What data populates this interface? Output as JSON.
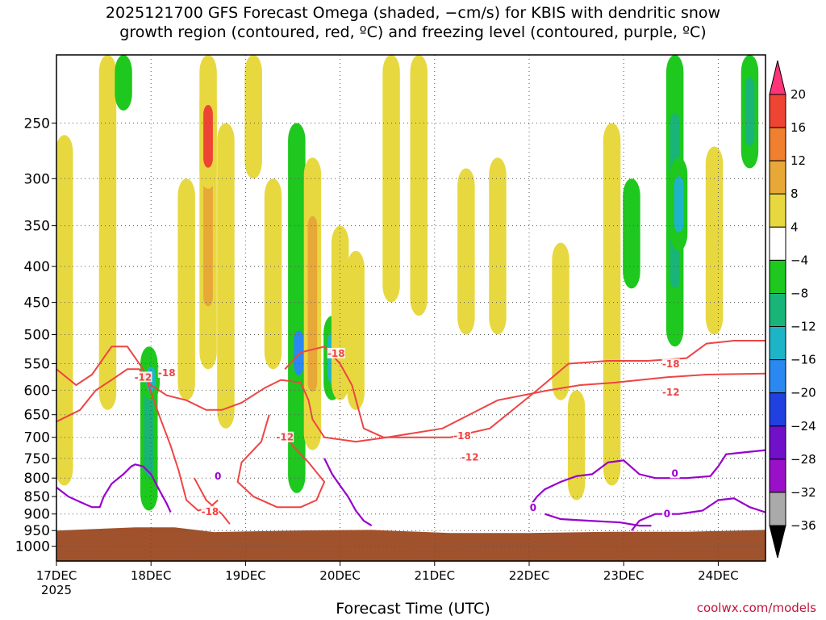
{
  "title_line1": "2025121700 GFS Forecast Omega (shaded, −cm/s) for KBIS with dendritic snow",
  "title_line2": "growth region (contoured, red, ºC) and freezing level (contoured, purple, ºC)",
  "credit": "coolwx.com/models",
  "chart_data": {
    "type": "heatmap",
    "title": "2025121700 GFS Forecast Omega (shaded, −cm/s) for KBIS with dendritic snow growth region (contoured, red, ºC) and freezing level (contoured, purple, ºC)",
    "xlabel": "Forecast Time (UTC)",
    "ylabel": "",
    "x_ticks": [
      "17DEC",
      "18DEC",
      "19DEC",
      "20DEC",
      "21DEC",
      "22DEC",
      "23DEC",
      "24DEC"
    ],
    "x_tick_year": "2025",
    "xlim_hours": [
      0,
      180
    ],
    "y_ticks": [
      250,
      300,
      350,
      400,
      450,
      500,
      550,
      600,
      650,
      700,
      750,
      800,
      850,
      900,
      950,
      1000
    ],
    "ylim_hpa": [
      200,
      1050
    ],
    "colorbar": {
      "labels": [
        "20",
        "16",
        "12",
        "8",
        "4",
        "−4",
        "−8",
        "−12",
        "−16",
        "−20",
        "−24",
        "−28",
        "−32",
        "−36"
      ],
      "colors": [
        "#ff3377",
        "#ee4433",
        "#f08030",
        "#e8a838",
        "#e8d840",
        "#ffffff",
        "#1ec81e",
        "#19b478",
        "#1eb4c8",
        "#2a88f0",
        "#2040e0",
        "#7010c8",
        "#9a10c8",
        "#aaaaaa",
        "#000000"
      ]
    },
    "omega_regions": [
      {
        "center_h": 2,
        "p_top": 260,
        "p_bot": 820,
        "value": 6
      },
      {
        "center_h": 13,
        "p_top": 200,
        "p_bot": 640,
        "value": 6
      },
      {
        "center_h": 17,
        "p_top": 200,
        "p_bot": 240,
        "value": -6
      },
      {
        "center_h": 23.5,
        "p_top": 520,
        "p_bot": 890,
        "value": -8
      },
      {
        "center_h": 24,
        "p_top": 540,
        "p_bot": 620,
        "value": -14
      },
      {
        "center_h": 33,
        "p_top": 300,
        "p_bot": 620,
        "value": 6
      },
      {
        "center_h": 38.5,
        "p_top": 200,
        "p_bot": 560,
        "value": 10
      },
      {
        "center_h": 38.5,
        "p_top": 220,
        "p_bot": 310,
        "value": 18
      },
      {
        "center_h": 43,
        "p_top": 250,
        "p_bot": 680,
        "value": 6
      },
      {
        "center_h": 50,
        "p_top": 200,
        "p_bot": 300,
        "value": 5
      },
      {
        "center_h": 55,
        "p_top": 300,
        "p_bot": 560,
        "value": 6
      },
      {
        "center_h": 61,
        "p_top": 250,
        "p_bot": 840,
        "value": -6
      },
      {
        "center_h": 61.5,
        "p_top": 470,
        "p_bot": 600,
        "value": -16
      },
      {
        "center_h": 65,
        "p_top": 280,
        "p_bot": 730,
        "value": 8
      },
      {
        "center_h": 70,
        "p_top": 470,
        "p_bot": 620,
        "value": -14
      },
      {
        "center_h": 72,
        "p_top": 350,
        "p_bot": 620,
        "value": 6
      },
      {
        "center_h": 76,
        "p_top": 380,
        "p_bot": 640,
        "value": 6
      },
      {
        "center_h": 85,
        "p_top": 200,
        "p_bot": 450,
        "value": 5
      },
      {
        "center_h": 92,
        "p_top": 200,
        "p_bot": 470,
        "value": 5
      },
      {
        "center_h": 104,
        "p_top": 290,
        "p_bot": 500,
        "value": 5
      },
      {
        "center_h": 112,
        "p_top": 280,
        "p_bot": 500,
        "value": 5
      },
      {
        "center_h": 128,
        "p_top": 370,
        "p_bot": 620,
        "value": 6
      },
      {
        "center_h": 132,
        "p_top": 600,
        "p_bot": 860,
        "value": 5
      },
      {
        "center_h": 141,
        "p_top": 250,
        "p_bot": 820,
        "value": 6
      },
      {
        "center_h": 146,
        "p_top": 300,
        "p_bot": 430,
        "value": -7
      },
      {
        "center_h": 157,
        "p_top": 200,
        "p_bot": 520,
        "value": -8
      },
      {
        "center_h": 158,
        "p_top": 280,
        "p_bot": 380,
        "value": -12
      },
      {
        "center_h": 167,
        "p_top": 270,
        "p_bot": 500,
        "value": 5
      },
      {
        "center_h": 176,
        "p_top": 200,
        "p_bot": 290,
        "value": -8
      }
    ],
    "dgz_contours": [
      {
        "label": "-18",
        "points": [
          [
            0,
            560
          ],
          [
            5,
            590
          ],
          [
            9,
            570
          ],
          [
            14,
            520
          ],
          [
            18,
            520
          ],
          [
            22,
            560
          ],
          [
            26,
            650
          ],
          [
            29,
            720
          ],
          [
            31,
            780
          ],
          [
            33,
            860
          ],
          [
            36,
            890
          ],
          [
            39,
            880
          ],
          [
            41,
            860
          ]
        ]
      },
      {
        "label": "-12",
        "points": [
          [
            0,
            665
          ],
          [
            6,
            640
          ],
          [
            10,
            600
          ],
          [
            14,
            580
          ],
          [
            18,
            560
          ],
          [
            21,
            560
          ],
          [
            24,
            590
          ],
          [
            28,
            610
          ],
          [
            33,
            620
          ],
          [
            38,
            640
          ],
          [
            42,
            640
          ],
          [
            47,
            625
          ],
          [
            53,
            595
          ],
          [
            57,
            580
          ],
          [
            62,
            585
          ],
          [
            64,
            620
          ],
          [
            65,
            660
          ],
          [
            68,
            700
          ],
          [
            76,
            710
          ],
          [
            84,
            700
          ],
          [
            98,
            680
          ],
          [
            112,
            620
          ],
          [
            125,
            600
          ],
          [
            133,
            590
          ],
          [
            142,
            585
          ],
          [
            155,
            575
          ],
          [
            165,
            570
          ],
          [
            180,
            568
          ]
        ]
      },
      {
        "label": "-18",
        "points": [
          [
            58,
            560
          ],
          [
            62,
            530
          ],
          [
            68,
            520
          ],
          [
            72,
            550
          ],
          [
            75,
            590
          ],
          [
            78,
            680
          ],
          [
            83,
            700
          ],
          [
            92,
            700
          ],
          [
            100,
            700
          ],
          [
            110,
            680
          ],
          [
            122,
            600
          ],
          [
            130,
            550
          ],
          [
            140,
            545
          ],
          [
            150,
            545
          ],
          [
            160,
            540
          ],
          [
            165,
            515
          ],
          [
            172,
            510
          ],
          [
            180,
            510
          ]
        ]
      },
      {
        "label": "-12",
        "points": [
          [
            54,
            650
          ],
          [
            52,
            710
          ],
          [
            47,
            760
          ],
          [
            46,
            810
          ],
          [
            50,
            850
          ],
          [
            56,
            880
          ],
          [
            62,
            880
          ],
          [
            66,
            860
          ],
          [
            68,
            810
          ],
          [
            64,
            760
          ],
          [
            60,
            720
          ],
          [
            58,
            690
          ]
        ]
      },
      {
        "label": "-18",
        "points": [
          [
            35,
            800
          ],
          [
            38,
            860
          ],
          [
            42,
            900
          ],
          [
            44,
            930
          ]
        ]
      }
    ],
    "freezing_contours": [
      {
        "label": "0",
        "points": [
          [
            0,
            825
          ],
          [
            3,
            850
          ],
          [
            6,
            865
          ],
          [
            9,
            880
          ],
          [
            11,
            880
          ],
          [
            12,
            850
          ],
          [
            14,
            815
          ],
          [
            17,
            790
          ],
          [
            19,
            770
          ],
          [
            20,
            765
          ],
          [
            22,
            770
          ],
          [
            24,
            790
          ],
          [
            26,
            830
          ],
          [
            28,
            870
          ],
          [
            29,
            895
          ]
        ]
      },
      {
        "label": "0",
        "points": [
          [
            68,
            750
          ],
          [
            70,
            790
          ],
          [
            72,
            820
          ],
          [
            74,
            850
          ],
          [
            76,
            890
          ],
          [
            78,
            920
          ],
          [
            80,
            935
          ]
        ]
      },
      {
        "label": "0",
        "points": [
          [
            120,
            880
          ],
          [
            122,
            850
          ],
          [
            124,
            830
          ],
          [
            128,
            810
          ],
          [
            132,
            795
          ],
          [
            136,
            790
          ],
          [
            140,
            760
          ],
          [
            144,
            755
          ],
          [
            148,
            790
          ],
          [
            152,
            800
          ],
          [
            160,
            800
          ],
          [
            166,
            795
          ],
          [
            168,
            770
          ],
          [
            170,
            740
          ],
          [
            175,
            735
          ],
          [
            180,
            730
          ]
        ]
      },
      {
        "label": "0",
        "points": [
          [
            124,
            900
          ],
          [
            128,
            915
          ],
          [
            135,
            920
          ],
          [
            143,
            925
          ],
          [
            148,
            935
          ],
          [
            151,
            935
          ]
        ]
      },
      {
        "label": "0",
        "points": [
          [
            146,
            950
          ],
          [
            148,
            920
          ],
          [
            152,
            900
          ],
          [
            158,
            900
          ],
          [
            164,
            890
          ],
          [
            168,
            860
          ],
          [
            172,
            855
          ],
          [
            176,
            880
          ],
          [
            180,
            895
          ]
        ]
      }
    ],
    "dgz_label_positions": [
      {
        "label": "-12",
        "h": 22,
        "p": 575
      },
      {
        "label": "-18",
        "h": 28,
        "p": 567
      },
      {
        "label": "-18",
        "h": 71,
        "p": 532
      },
      {
        "label": "-12",
        "h": 58,
        "p": 700
      },
      {
        "label": "-18",
        "h": 103,
        "p": 697
      },
      {
        "label": "-12",
        "h": 105,
        "p": 747
      },
      {
        "label": "-18",
        "h": 39,
        "p": 893
      },
      {
        "label": "-18",
        "h": 156,
        "p": 551
      },
      {
        "label": "-12",
        "h": 156,
        "p": 604
      }
    ],
    "freezing_label_positions": [
      {
        "label": "0",
        "h": 41,
        "p": 795
      },
      {
        "label": "0",
        "h": 121,
        "p": 882
      },
      {
        "label": "0",
        "h": 157,
        "p": 788
      },
      {
        "label": "0",
        "h": 155,
        "p": 900
      }
    ],
    "terrain_surface": [
      [
        0,
        950
      ],
      [
        20,
        940
      ],
      [
        30,
        940
      ],
      [
        40,
        955
      ],
      [
        60,
        950
      ],
      [
        80,
        948
      ],
      [
        100,
        958
      ],
      [
        120,
        958
      ],
      [
        140,
        954
      ],
      [
        160,
        954
      ],
      [
        180,
        948
      ]
    ]
  }
}
